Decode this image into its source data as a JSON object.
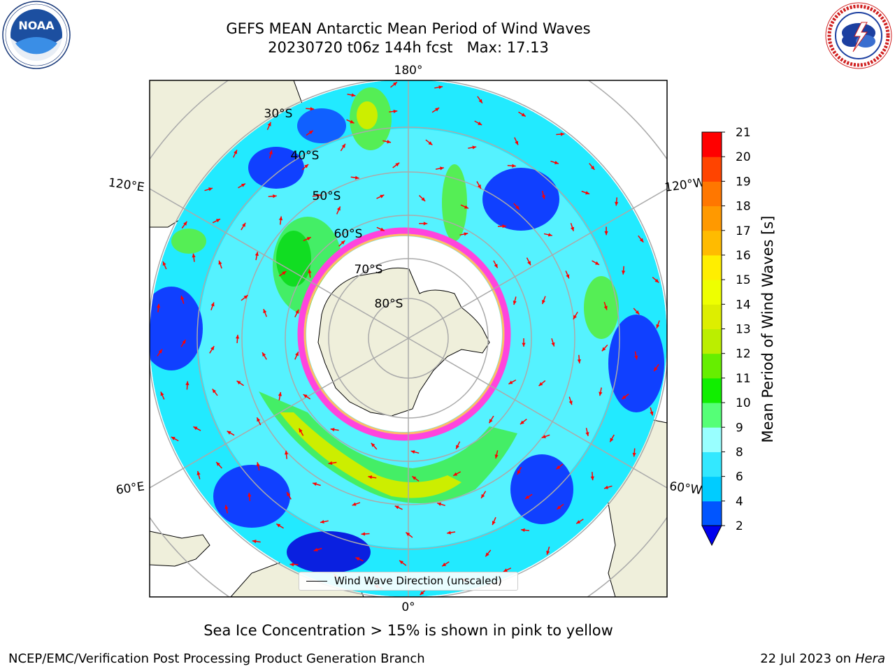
{
  "header": {
    "title_line1": "GEFS MEAN Antarctic Mean Period of Wind Waves",
    "title_line2": "20230720 t06z 144h fcst   Max: 17.13"
  },
  "logos": {
    "left": "noaa-logo",
    "right": "nws-logo"
  },
  "map": {
    "projection": "south-polar-stereographic",
    "longitude_labels": {
      "top": "180°",
      "bottom": "0°",
      "upper_left": "120°E",
      "upper_right": "120°W",
      "lower_left": "60°E",
      "lower_right": "60°W"
    },
    "latitude_labels": [
      "30°S",
      "40°S",
      "50°S",
      "60°S",
      "70°S",
      "80°S"
    ],
    "legend_text": "Wind Wave Direction (unscaled)",
    "arrow_color": "#ff0000"
  },
  "colorbar": {
    "label": "Mean Period of Wind Waves [s]",
    "ticks": [
      "2",
      "4",
      "6",
      "8",
      "9",
      "10",
      "11",
      "12",
      "13",
      "14",
      "15",
      "16",
      "17",
      "18",
      "19",
      "20",
      "21"
    ],
    "colors": [
      "#0055ff",
      "#00ccff",
      "#33e8ff",
      "#99ffff",
      "#55ff77",
      "#11ee00",
      "#66ee00",
      "#bbee00",
      "#ddee00",
      "#eeff00",
      "#ffee00",
      "#ffbb00",
      "#ff9900",
      "#ff7700",
      "#ff4400",
      "#ff0000"
    ],
    "under_color": "#0000ee"
  },
  "notes": {
    "sea_ice": "Sea Ice Concentration > 15% is shown in pink to yellow"
  },
  "footer": {
    "left": "NCEP/EMC/Verification Post Processing Product Generation Branch",
    "right_prefix": "22 Jul 2023 on ",
    "right_italic": "Hera"
  }
}
